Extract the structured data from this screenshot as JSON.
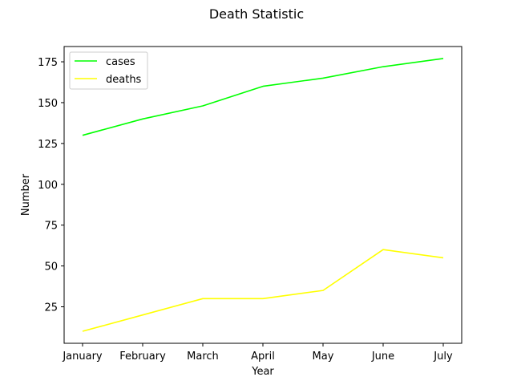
{
  "chart_data": {
    "type": "line",
    "title": "Death Statistic",
    "xlabel": "Year",
    "ylabel": "Number",
    "categories": [
      "January",
      "February",
      "March",
      "April",
      "May",
      "June",
      "July"
    ],
    "series": [
      {
        "name": "cases",
        "color": "#00ff00",
        "values": [
          130,
          140,
          148,
          160,
          165,
          172,
          177
        ]
      },
      {
        "name": "deaths",
        "color": "#ffff00",
        "values": [
          10,
          20,
          30,
          30,
          35,
          60,
          55
        ]
      }
    ],
    "ylim": [
      2.65,
      184.35
    ],
    "yticks": [
      25,
      50,
      75,
      100,
      125,
      150,
      175
    ],
    "legend": "top-left",
    "grid": false
  }
}
